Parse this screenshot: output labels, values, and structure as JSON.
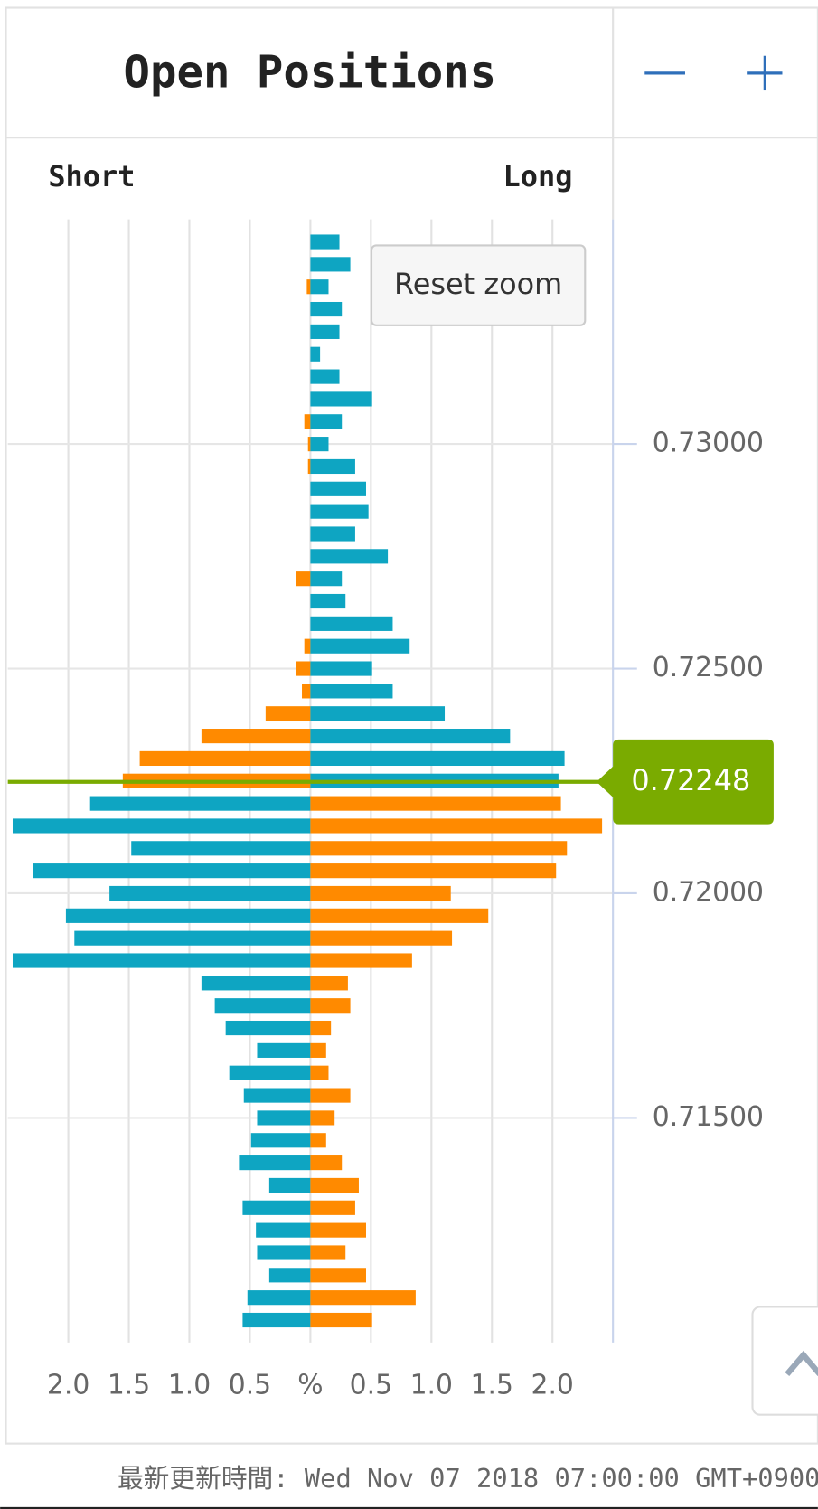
{
  "header": {
    "title": "Open Positions"
  },
  "chart_data": {
    "type": "bar",
    "orientation": "horizontal",
    "side_labels": {
      "left": "Short",
      "right": "Long"
    },
    "reset_zoom": "Reset zoom",
    "y": [
      0.7345,
      0.734,
      0.7335,
      0.733,
      0.7325,
      0.732,
      0.7315,
      0.731,
      0.7305,
      0.73,
      0.7295,
      0.729,
      0.7285,
      0.728,
      0.7275,
      0.727,
      0.7265,
      0.726,
      0.7255,
      0.725,
      0.7245,
      0.724,
      0.7235,
      0.723,
      0.7225,
      0.722,
      0.7215,
      0.721,
      0.7205,
      0.72,
      0.7195,
      0.719,
      0.7185,
      0.718,
      0.7175,
      0.717,
      0.7165,
      0.716,
      0.7155,
      0.715,
      0.7145,
      0.714,
      0.7135,
      0.713,
      0.7125,
      0.712,
      0.7115,
      0.711,
      0.7105
    ],
    "series": [
      {
        "name": "Short",
        "side": "left",
        "color": "#ff8a00",
        "color_below": "#0ea5c2",
        "values": [
          0,
          0,
          0.03,
          0,
          0,
          0,
          0,
          0,
          0.05,
          0.02,
          0.02,
          0,
          0,
          0,
          0,
          0.12,
          0,
          0,
          0.05,
          0.12,
          0.07,
          0.37,
          0.9,
          1.41,
          1.55,
          1.82,
          2.46,
          1.48,
          2.29,
          1.66,
          2.02,
          1.95,
          2.46,
          0.9,
          0.79,
          0.7,
          0.44,
          0.67,
          0.55,
          0.44,
          0.49,
          0.59,
          0.34,
          0.56,
          0.45,
          0.44,
          0.34,
          0.52,
          0.56
        ]
      },
      {
        "name": "Long",
        "side": "right",
        "color": "#0ea5c2",
        "color_below": "#ff8a00",
        "values": [
          0.24,
          0.33,
          0.15,
          0.26,
          0.24,
          0.08,
          0.24,
          0.51,
          0.26,
          0.15,
          0.37,
          0.46,
          0.48,
          0.37,
          0.64,
          0.26,
          0.29,
          0.68,
          0.82,
          0.51,
          0.68,
          1.11,
          1.65,
          2.1,
          2.05,
          2.07,
          2.41,
          2.12,
          2.03,
          1.16,
          1.47,
          1.17,
          0.84,
          0.31,
          0.33,
          0.17,
          0.13,
          0.15,
          0.33,
          0.2,
          0.13,
          0.26,
          0.4,
          0.37,
          0.46,
          0.29,
          0.46,
          0.87,
          0.51
        ]
      }
    ],
    "current_price": 0.72248,
    "current_price_color": "#7aab00",
    "xlim": [
      -2.5,
      2.5
    ],
    "xticks": [
      {
        "value": -2,
        "label": "2.0"
      },
      {
        "value": -1.5,
        "label": "1.5"
      },
      {
        "value": -1,
        "label": "1.0"
      },
      {
        "value": -0.5,
        "label": "0.5"
      },
      {
        "value": 0,
        "label": "%"
      },
      {
        "value": 0.5,
        "label": "0.5"
      },
      {
        "value": 1,
        "label": "1.0"
      },
      {
        "value": 1.5,
        "label": "1.5"
      },
      {
        "value": 2,
        "label": "2.0"
      }
    ],
    "ylim": [
      0.71,
      0.735
    ],
    "yticks": [
      {
        "value": 0.715,
        "label": "0.71500"
      },
      {
        "value": 0.72,
        "label": "0.72000"
      },
      {
        "value": 0.725,
        "label": "0.72500"
      },
      {
        "value": 0.73,
        "label": "0.73000"
      }
    ],
    "grid": true
  },
  "footer": {
    "updated": "最新更新時間: Wed Nov 07 2018 07:00:00 GMT+0900"
  }
}
